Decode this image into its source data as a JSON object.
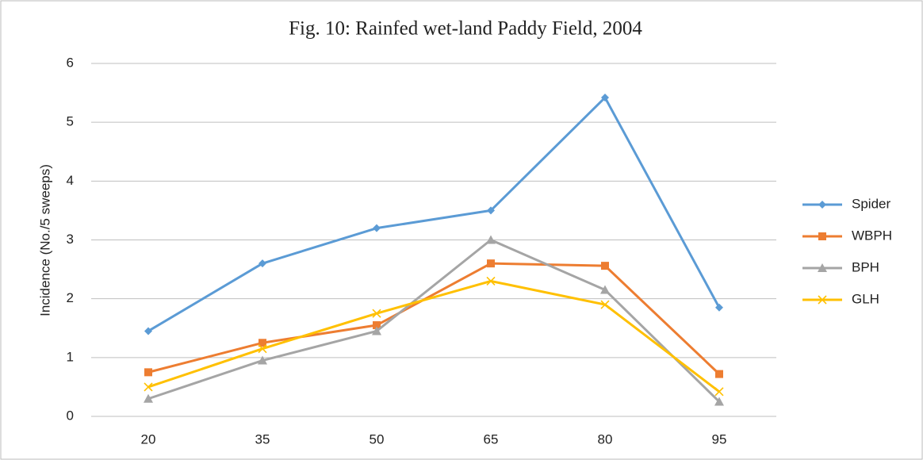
{
  "chart_data": {
    "type": "line",
    "title": "Fig. 10: Rainfed wet-land Paddy Field, 2004",
    "y_label": "Incidence (No./5 sweeps)",
    "categories": [
      "20",
      "35",
      "50",
      "65",
      "80",
      "95"
    ],
    "series": [
      {
        "name": "Spider",
        "color": "#5b9bd5",
        "marker": "diamond",
        "values": [
          1.45,
          2.6,
          3.2,
          3.5,
          5.42,
          1.85
        ]
      },
      {
        "name": "WBPH",
        "color": "#ed7d31",
        "marker": "square",
        "values": [
          0.75,
          1.25,
          1.55,
          2.6,
          2.56,
          0.72
        ]
      },
      {
        "name": "BPH",
        "color": "#a5a5a5",
        "marker": "triangle",
        "values": [
          0.3,
          0.95,
          1.45,
          3.0,
          2.15,
          0.25
        ]
      },
      {
        "name": "GLH",
        "color": "#ffc000",
        "marker": "x",
        "values": [
          0.5,
          1.15,
          1.75,
          2.3,
          1.9,
          0.42
        ]
      }
    ],
    "ylim": [
      0,
      6
    ],
    "yticks": [
      0,
      1,
      2,
      3,
      4,
      5,
      6
    ],
    "grid": true,
    "legend": "right"
  }
}
